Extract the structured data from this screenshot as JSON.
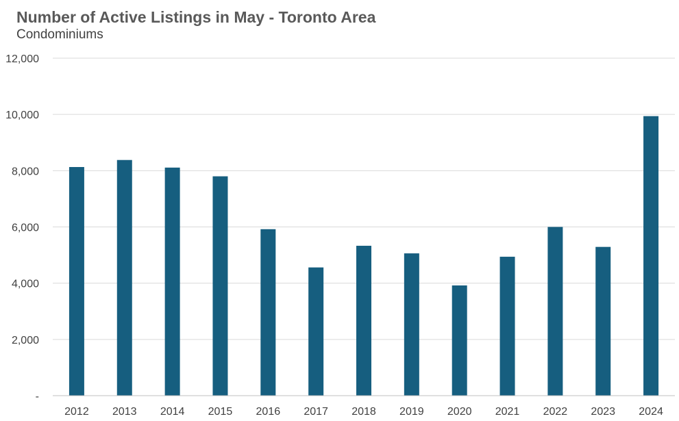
{
  "chart_data": {
    "type": "bar",
    "title": "Number of Active Listings in May - Toronto Area",
    "subtitle": "Condominiums",
    "categories": [
      "2012",
      "2013",
      "2014",
      "2015",
      "2016",
      "2017",
      "2018",
      "2019",
      "2020",
      "2021",
      "2022",
      "2023",
      "2024"
    ],
    "values": [
      8130,
      8380,
      8110,
      7800,
      5920,
      4560,
      5330,
      5060,
      3920,
      4940,
      6000,
      5290,
      9940
    ],
    "ylim": [
      0,
      12000
    ],
    "yticks": [
      0,
      2000,
      4000,
      6000,
      8000,
      10000,
      12000
    ],
    "ytick_labels": [
      "-",
      "2,000",
      "4,000",
      "6,000",
      "8,000",
      "10,000",
      "12,000"
    ],
    "grid": true,
    "bar_color": "#165e7f",
    "grid_color": "#d9d9d9"
  }
}
